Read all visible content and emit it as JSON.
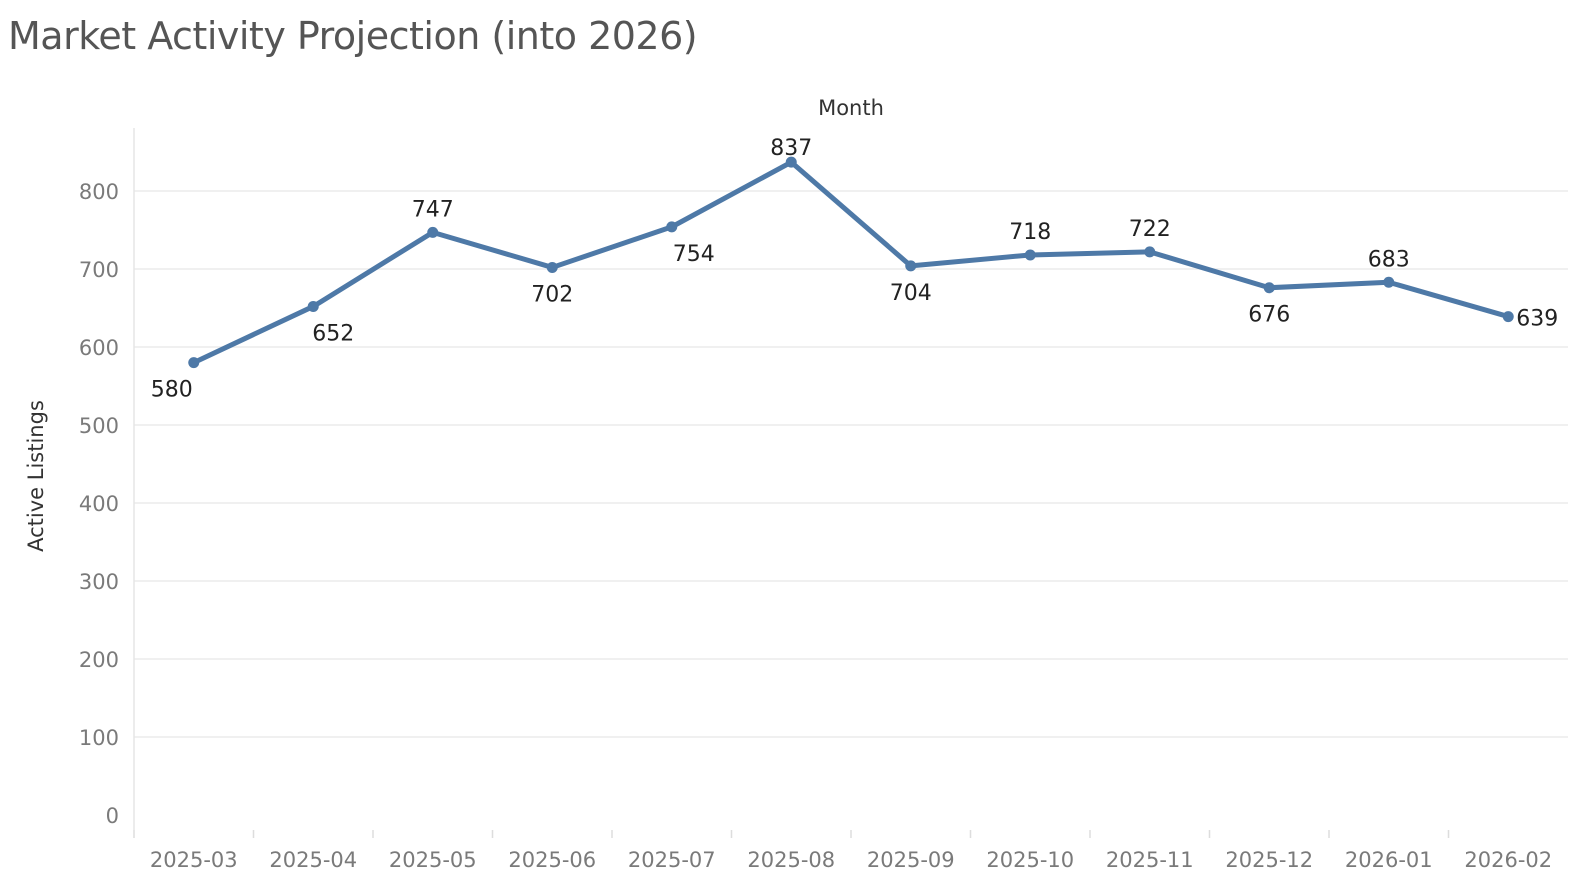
{
  "chart_data": {
    "type": "line",
    "title": "Market Activity Projection (into 2026)",
    "xlabel": "Month",
    "ylabel": "Active Listings",
    "categories": [
      "2025-03",
      "2025-04",
      "2025-05",
      "2025-06",
      "2025-07",
      "2025-08",
      "2025-09",
      "2025-10",
      "2025-11",
      "2025-12",
      "2026-01",
      "2026-02"
    ],
    "series": [
      {
        "values": [
          580,
          652,
          747,
          702,
          754,
          837,
          704,
          718,
          722,
          676,
          683,
          639
        ],
        "color": "#4e79a7"
      }
    ],
    "label_position": [
      "below",
      "below",
      "above",
      "below",
      "below",
      "above",
      "below",
      "above",
      "above",
      "below",
      "above",
      "right"
    ],
    "ylim": [
      0,
      880
    ],
    "yticks": [
      0,
      100,
      200,
      300,
      400,
      500,
      600,
      700,
      800
    ],
    "grid": true,
    "xaxis_position": "top",
    "legend": "none"
  }
}
